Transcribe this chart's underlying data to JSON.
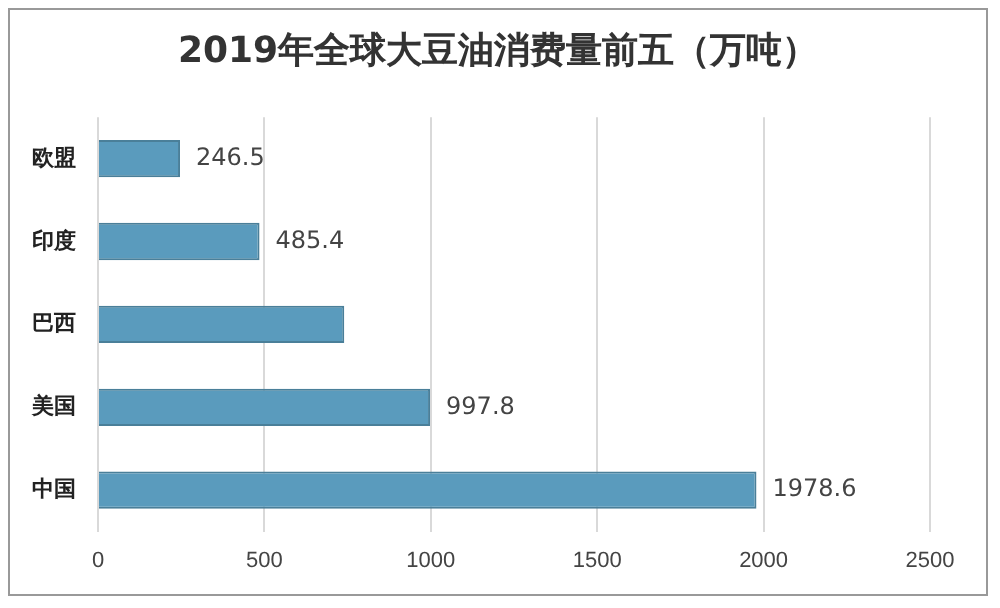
{
  "chart_data": {
    "type": "bar",
    "orientation": "horizontal",
    "title": "2019年全球大豆油消费量前五（万吨）",
    "categories": [
      "欧盟",
      "印度",
      "巴西",
      "美国",
      "中国"
    ],
    "values": [
      246.5,
      485.4,
      740,
      997.8,
      1978.6
    ],
    "value_labels": [
      "246.5",
      "485.4",
      null,
      "997.8",
      "1978.6"
    ],
    "color": "#5a9bbd",
    "xlim": [
      0,
      2500
    ],
    "xticks": [
      0,
      500,
      1000,
      1500,
      2000,
      2500
    ],
    "grid": "x",
    "legend": false
  }
}
